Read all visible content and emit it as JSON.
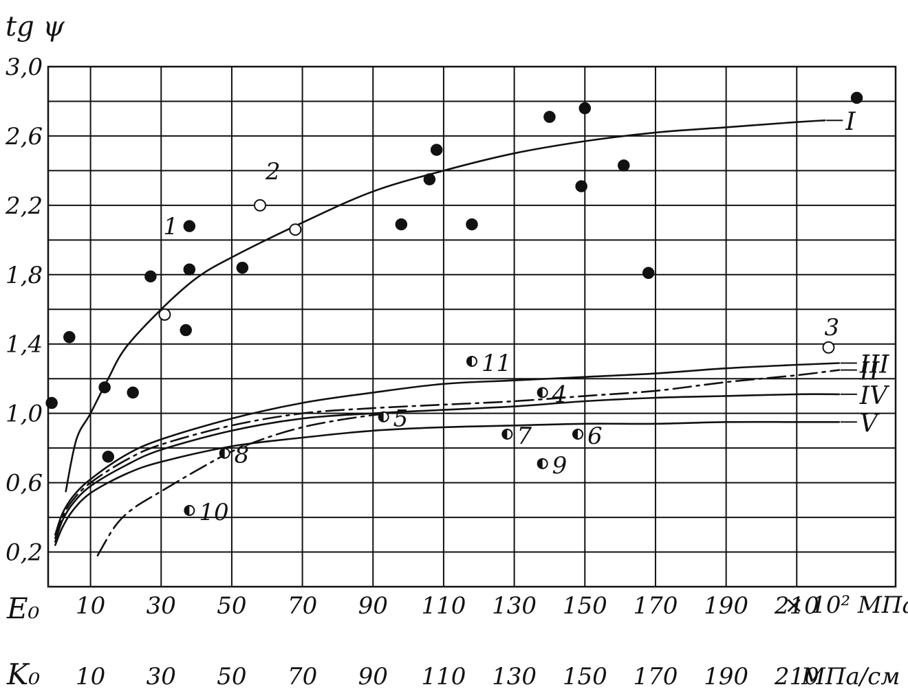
{
  "chart_data": {
    "type": "scatter",
    "ylabel": "tg ψ",
    "ylim": [
      0.0,
      3.0
    ],
    "xlim": [
      -2,
      238
    ],
    "y_ticks": [
      "0,2",
      "0,6",
      "1,0",
      "1,4",
      "1,8",
      "2,2",
      "2,6",
      "3,0"
    ],
    "x_axis_E": {
      "label": "E₀",
      "ticks": [
        "10",
        "30",
        "50",
        "70",
        "90",
        "110",
        "130",
        "150",
        "170",
        "190",
        "210"
      ],
      "unit": "× 10² МПа"
    },
    "x_axis_K": {
      "label": "K₀",
      "ticks": [
        "10",
        "30",
        "50",
        "70",
        "90",
        "110",
        "130",
        "150",
        "170",
        "190",
        "210"
      ],
      "unit": "МПа/см"
    },
    "grid": true,
    "curves": [
      {
        "name": "I",
        "style": "solid",
        "x": [
          3,
          6,
          10,
          15,
          20,
          30,
          40,
          50,
          70,
          90,
          110,
          130,
          150,
          170,
          190,
          210,
          218
        ],
        "y": [
          0.55,
          0.85,
          1.0,
          1.2,
          1.38,
          1.6,
          1.78,
          1.9,
          2.1,
          2.28,
          2.4,
          2.5,
          2.57,
          2.62,
          2.65,
          2.68,
          2.69
        ]
      },
      {
        "name": "III",
        "style": "solid-dash",
        "x": [
          0,
          2,
          5,
          10,
          20,
          30,
          50,
          70,
          90,
          110,
          130,
          150,
          170,
          190,
          210,
          222
        ],
        "y": [
          0.3,
          0.42,
          0.52,
          0.62,
          0.76,
          0.85,
          0.97,
          1.06,
          1.12,
          1.17,
          1.19,
          1.21,
          1.23,
          1.26,
          1.28,
          1.29
        ]
      },
      {
        "name": "II",
        "style": "dash-dot",
        "x": [
          0,
          2,
          5,
          10,
          20,
          30,
          50,
          70,
          90,
          110,
          130,
          150,
          170,
          190,
          210,
          222
        ],
        "y": [
          0.28,
          0.4,
          0.5,
          0.6,
          0.73,
          0.82,
          0.93,
          1.0,
          1.03,
          1.05,
          1.07,
          1.1,
          1.13,
          1.18,
          1.22,
          1.25
        ]
      },
      {
        "name": "IV",
        "style": "solid-dash",
        "x": [
          0,
          2,
          5,
          10,
          20,
          30,
          50,
          70,
          90,
          110,
          130,
          150,
          170,
          190,
          210,
          222
        ],
        "y": [
          0.26,
          0.38,
          0.48,
          0.58,
          0.7,
          0.79,
          0.9,
          0.97,
          1.0,
          1.02,
          1.04,
          1.07,
          1.09,
          1.1,
          1.11,
          1.11
        ]
      },
      {
        "name": "V",
        "style": "solid-dash",
        "x": [
          0,
          2,
          5,
          10,
          20,
          30,
          50,
          70,
          90,
          110,
          130,
          150,
          170,
          190,
          210,
          222
        ],
        "y": [
          0.24,
          0.34,
          0.44,
          0.54,
          0.65,
          0.72,
          0.81,
          0.86,
          0.9,
          0.92,
          0.93,
          0.94,
          0.94,
          0.95,
          0.95,
          0.95
        ]
      },
      {
        "name": "",
        "style": "dash-dot",
        "x": [
          12,
          17,
          22,
          30,
          40,
          50,
          60,
          70,
          80,
          90,
          95
        ],
        "y": [
          0.18,
          0.35,
          0.45,
          0.55,
          0.67,
          0.78,
          0.86,
          0.92,
          0.96,
          0.99,
          1.0
        ]
      }
    ],
    "points": [
      {
        "x": -1,
        "y": 1.06,
        "fill": "filled",
        "label": ""
      },
      {
        "x": 4,
        "y": 1.44,
        "fill": "filled",
        "label": ""
      },
      {
        "x": 14,
        "y": 1.15,
        "fill": "filled",
        "label": ""
      },
      {
        "x": 15,
        "y": 0.75,
        "fill": "filled",
        "label": ""
      },
      {
        "x": 22,
        "y": 1.12,
        "fill": "filled",
        "label": ""
      },
      {
        "x": 27,
        "y": 1.79,
        "fill": "filled",
        "label": ""
      },
      {
        "x": 38,
        "y": 2.08,
        "fill": "filled",
        "label": "1"
      },
      {
        "x": 38,
        "y": 1.83,
        "fill": "filled",
        "label": ""
      },
      {
        "x": 37,
        "y": 1.48,
        "fill": "filled",
        "label": ""
      },
      {
        "x": 53,
        "y": 1.84,
        "fill": "filled",
        "label": ""
      },
      {
        "x": 98,
        "y": 2.09,
        "fill": "filled",
        "label": ""
      },
      {
        "x": 106,
        "y": 2.35,
        "fill": "filled",
        "label": ""
      },
      {
        "x": 108,
        "y": 2.52,
        "fill": "filled",
        "label": ""
      },
      {
        "x": 118,
        "y": 2.09,
        "fill": "filled",
        "label": ""
      },
      {
        "x": 140,
        "y": 2.71,
        "fill": "filled",
        "label": ""
      },
      {
        "x": 149,
        "y": 2.31,
        "fill": "filled",
        "label": ""
      },
      {
        "x": 150,
        "y": 2.76,
        "fill": "filled",
        "label": ""
      },
      {
        "x": 161,
        "y": 2.43,
        "fill": "filled",
        "label": ""
      },
      {
        "x": 168,
        "y": 1.81,
        "fill": "filled",
        "label": ""
      },
      {
        "x": 227,
        "y": 2.82,
        "fill": "filled",
        "label": ""
      },
      {
        "x": 58,
        "y": 2.2,
        "fill": "open",
        "label": "2"
      },
      {
        "x": 68,
        "y": 2.06,
        "fill": "open",
        "label": ""
      },
      {
        "x": 31,
        "y": 1.57,
        "fill": "open",
        "label": ""
      },
      {
        "x": 219,
        "y": 1.38,
        "fill": "open",
        "label": "3"
      },
      {
        "x": 138,
        "y": 1.12,
        "fill": "half",
        "label": "4"
      },
      {
        "x": 93,
        "y": 0.98,
        "fill": "half",
        "label": "5"
      },
      {
        "x": 148,
        "y": 0.88,
        "fill": "half",
        "label": "6"
      },
      {
        "x": 128,
        "y": 0.88,
        "fill": "half",
        "label": "7"
      },
      {
        "x": 48,
        "y": 0.77,
        "fill": "half",
        "label": "8"
      },
      {
        "x": 138,
        "y": 0.71,
        "fill": "half",
        "label": "9"
      },
      {
        "x": 38,
        "y": 0.44,
        "fill": "half",
        "label": "10"
      },
      {
        "x": 118,
        "y": 1.3,
        "fill": "half",
        "label": "11"
      }
    ]
  }
}
